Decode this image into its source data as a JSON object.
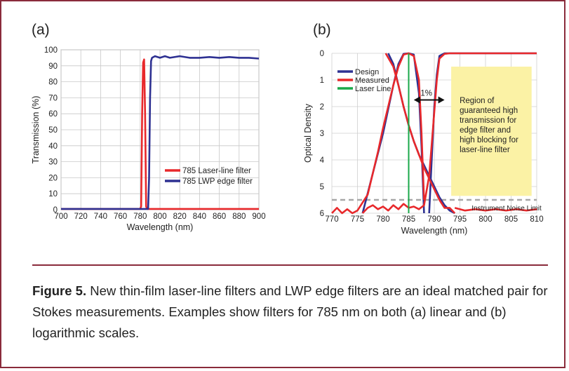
{
  "figure": {
    "caption_label": "Figure 5.",
    "caption_text": " New thin-film laser-line filters and LWP edge filters are an ideal matched pair for Stokes measurements. Examples show filters for 785 nm on both (a) linear and (b) logarithmic scales."
  },
  "colors": {
    "border": "#8a2b3b",
    "red": "#e8282b",
    "blue": "#2e3192",
    "green": "#1aa84a",
    "yellow": "#fbf2a5",
    "noise": "#a7a7a7"
  },
  "chart_data": [
    {
      "panel": "(a)",
      "type": "line",
      "xlabel": "Wavelength (nm)",
      "ylabel": "Transmission (%)",
      "xlim": [
        700,
        900
      ],
      "ylim": [
        0,
        100
      ],
      "xticks": [
        700,
        720,
        740,
        760,
        780,
        800,
        820,
        840,
        860,
        880,
        900
      ],
      "yticks": [
        0,
        10,
        20,
        30,
        40,
        50,
        60,
        70,
        80,
        90,
        100
      ],
      "grid": true,
      "legend_position": "bottom-right",
      "series": [
        {
          "name": "785 Laser-line filter",
          "color": "#e8282b",
          "x": [
            700,
            780,
            781,
            782,
            783,
            784,
            785,
            786,
            787,
            900
          ],
          "y": [
            0.5,
            0.5,
            2,
            60,
            92,
            94,
            60,
            2,
            0.5,
            0.5
          ]
        },
        {
          "name": "785 LWP edge filter",
          "color": "#2e3192",
          "x": [
            700,
            788,
            789,
            790,
            791,
            792,
            795,
            800,
            805,
            810,
            820,
            830,
            840,
            850,
            860,
            870,
            880,
            890,
            900
          ],
          "y": [
            0.5,
            0.5,
            20,
            70,
            93,
            95,
            96,
            95,
            96,
            95,
            96,
            95,
            95,
            95.5,
            95,
            95.5,
            95,
            95,
            94.5
          ]
        }
      ]
    },
    {
      "panel": "(b)",
      "type": "line",
      "xlabel": "Wavelength (nm)",
      "ylabel": "Optical Density",
      "xlim": [
        770,
        810
      ],
      "ylim": [
        0,
        6
      ],
      "y_inverted": true,
      "xticks": [
        770,
        775,
        780,
        785,
        790,
        795,
        800,
        805,
        810
      ],
      "yticks": [
        0,
        1,
        2,
        3,
        4,
        5,
        6
      ],
      "grid": true,
      "legend_position": "top-left",
      "series": [
        {
          "name": "Design",
          "color": "#2e3192",
          "curves": [
            {
              "x": [
                776,
                778,
                780,
                782,
                783,
                784,
                785,
                786,
                787,
                787.5,
                788
              ],
              "y": [
                6,
                4.5,
                3,
                1.2,
                0.4,
                0.02,
                0,
                0.05,
                1.5,
                3.5,
                6
              ]
            },
            {
              "x": [
                781,
                782,
                783,
                784,
                785,
                786,
                787,
                788,
                789,
                790,
                791,
                792,
                793,
                794
              ],
              "y": [
                0,
                0.4,
                1.2,
                2.0,
                2.7,
                3.3,
                3.8,
                4.2,
                4.6,
                5.0,
                5.4,
                5.7,
                5.9,
                6
              ]
            },
            {
              "x": [
                789,
                789.5,
                790,
                790.5,
                791,
                792,
                810
              ],
              "y": [
                6,
                4,
                2,
                0.8,
                0.1,
                0,
                0
              ]
            }
          ]
        },
        {
          "name": "Measured",
          "color": "#e8282b",
          "curves": [
            {
              "x": [
                770,
                771,
                772,
                773,
                774,
                775,
                776,
                777,
                778,
                779,
                780,
                781,
                782,
                783,
                784,
                785,
                786,
                787,
                787.5,
                788
              ],
              "y": [
                6,
                5.8,
                6,
                5.85,
                6,
                5.9,
                5.6,
                5.3,
                4.5,
                3.7,
                2.8,
                2.0,
                1.2,
                0.5,
                0.05,
                0,
                0.1,
                1.0,
                3.0,
                5.5
              ]
            },
            {
              "x": [
                780.5,
                782,
                783,
                784,
                785,
                786,
                787,
                788,
                789,
                790,
                791,
                792,
                793,
                794
              ],
              "y": [
                0,
                0.5,
                1.2,
                2.0,
                2.7,
                3.3,
                3.8,
                4.3,
                4.7,
                5.1,
                5.5,
                5.8,
                5.8,
                6
              ]
            },
            {
              "x": [
                776,
                777,
                778,
                779,
                780,
                781,
                782,
                783,
                784,
                785,
                786,
                787,
                788,
                789,
                790,
                790.5,
                791,
                792,
                793,
                794,
                795,
                796,
                797,
                798,
                799,
                800,
                801,
                802,
                803,
                804,
                805,
                806,
                807,
                808,
                809,
                810
              ],
              "y": [
                6,
                5.8,
                5.7,
                5.85,
                5.75,
                5.9,
                5.7,
                5.85,
                5.65,
                5.8,
                5.75,
                5.85,
                5.7,
                4.6,
                2.2,
                1.0,
                0.2,
                0.02,
                0,
                0,
                0,
                0,
                0,
                0,
                0,
                0,
                0,
                0,
                0,
                0,
                0,
                0,
                0,
                0,
                0,
                0
              ]
            },
            {
              "x": [
                794,
                796,
                798,
                800,
                802,
                804,
                806,
                808,
                810
              ],
              "y": [
                5.8,
                5.9,
                5.85,
                5.9,
                5.85,
                5.9,
                5.85,
                5.9,
                5.85
              ]
            }
          ]
        },
        {
          "name": "Laser Line",
          "color": "#1aa84a",
          "curves": [
            {
              "x": [
                785,
                785
              ],
              "y": [
                0,
                6
              ]
            }
          ]
        }
      ],
      "noise_limit": {
        "label": "Instrument Noise Limit",
        "y": 5.5
      },
      "annotations": {
        "arrow_label": "1%",
        "arrow_x": [
          786,
          792
        ],
        "arrow_y": 1.75,
        "region_text": [
          "Region of",
          "guaranteed high",
          "transmission for",
          "edge filter and",
          "high blocking for",
          "laser-line filter"
        ],
        "region_x": [
          793.3,
          809
        ],
        "region_y": [
          0.5,
          5.35
        ]
      }
    }
  ]
}
